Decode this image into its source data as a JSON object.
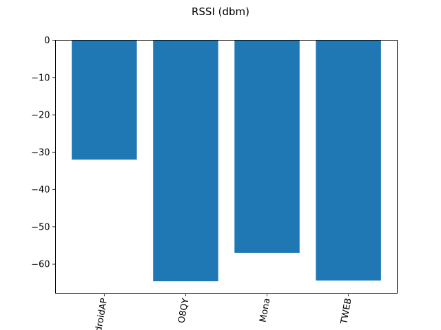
{
  "chart_data": {
    "type": "bar",
    "title": "RSSI (dbm)",
    "xlabel": "",
    "ylabel": "",
    "categories": [
      "AndroidAP",
      "O8QY",
      "Mona",
      "TWEB"
    ],
    "values": [
      -32,
      -64.6,
      -57,
      -64.4
    ],
    "ylim": [
      -67.8,
      0
    ],
    "yticks": [
      0,
      -10,
      -20,
      -30,
      -40,
      -50,
      -60
    ],
    "ytick_labels": [
      "0",
      "−10",
      "−20",
      "−30",
      "−40",
      "−50",
      "−60"
    ],
    "bar_color": "#1f77b4",
    "grid": false,
    "xtick_rotation": 80
  }
}
